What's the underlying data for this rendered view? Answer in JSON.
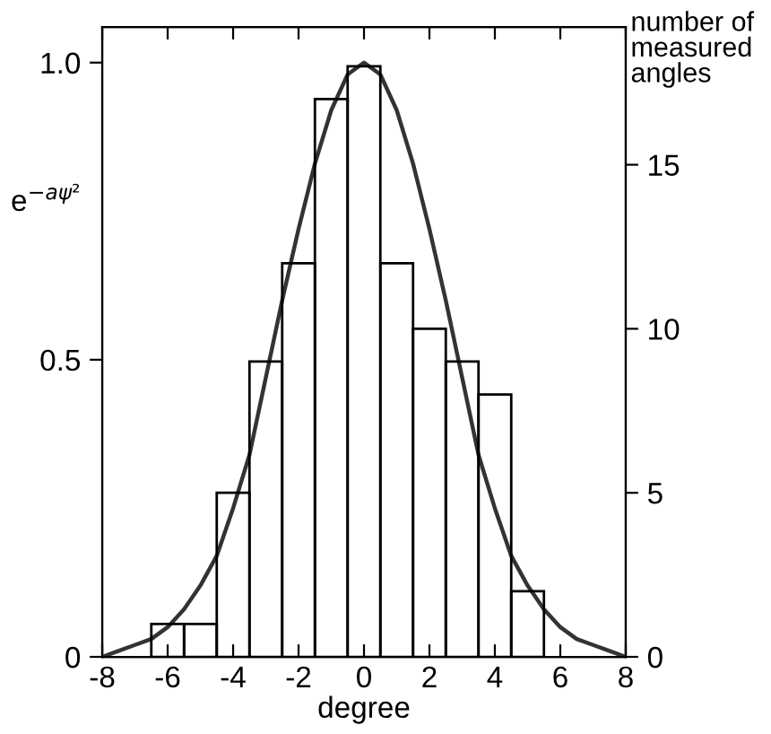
{
  "chart_data": {
    "type": "histogram",
    "xlabel": "degree",
    "ylabel": "e$^{−aψ²}$",
    "y2label": "number of\nmeasured\nangles",
    "series": [
      {
        "axis": "y2",
        "color": "#000000",
        "bins": [
          -6.5,
          -5.5,
          -4.5,
          -3.5,
          -2.5,
          -1.5,
          -0.5,
          0.5,
          1.5,
          2.5,
          3.5,
          4.5,
          5.5
        ],
        "values": [
          1,
          1,
          5,
          9,
          12,
          17,
          18,
          12,
          10,
          9,
          8,
          2
        ]
      },
      {
        "type": "line",
        "color": "#333333",
        "x": [
          -8,
          -7.5,
          -7,
          -6.5,
          -6,
          -5.5,
          -5,
          -4.5,
          -4,
          -3.5,
          -3,
          -2.5,
          -2,
          -1.5,
          -1,
          -0.5,
          0,
          0.5,
          1,
          1.5,
          2,
          2.5,
          3,
          3.5,
          4,
          4.5,
          5,
          5.5,
          6,
          6.5,
          7,
          7.5,
          8
        ],
        "values": [
          0.0,
          0.01,
          0.02,
          0.03,
          0.05,
          0.08,
          0.12,
          0.17,
          0.25,
          0.34,
          0.47,
          0.6,
          0.72,
          0.83,
          0.92,
          0.98,
          1.0,
          0.98,
          0.92,
          0.83,
          0.72,
          0.6,
          0.47,
          0.34,
          0.25,
          0.17,
          0.12,
          0.08,
          0.05,
          0.03,
          0.02,
          0.01,
          0.0
        ]
      }
    ],
    "xlim": [
      -8,
      8
    ],
    "xticks": [
      -8,
      -6,
      -4,
      -2,
      0,
      2,
      4,
      6,
      8
    ],
    "ylim": [
      0,
      1.06
    ],
    "yticks": [
      0,
      0.5,
      {
        "value": 1,
        "label": "1.0"
      }
    ],
    "y2lim": [
      0,
      19.2
    ],
    "y2ticks": [
      0,
      5,
      10,
      15
    ],
    "grid": false,
    "legend": false
  }
}
